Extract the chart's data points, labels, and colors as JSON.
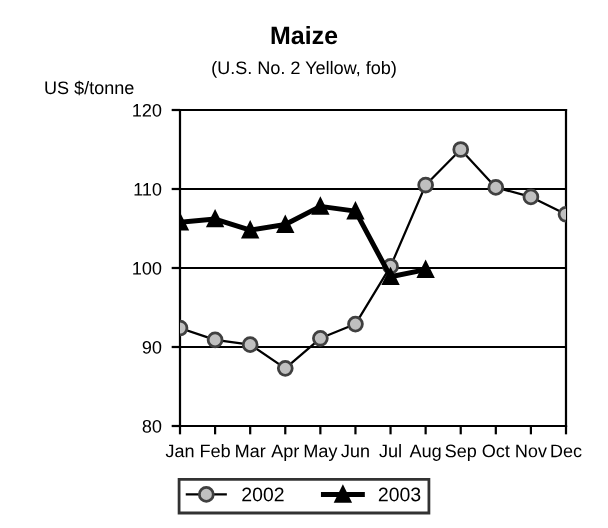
{
  "chart_data": {
    "type": "line",
    "title": "Maize",
    "subtitle": "(U.S. No. 2 Yellow, fob)",
    "ylabel": "US $/tonne",
    "categories": [
      "Jan",
      "Feb",
      "Mar",
      "Apr",
      "May",
      "Jun",
      "Jul",
      "Aug",
      "Sep",
      "Oct",
      "Nov",
      "Dec"
    ],
    "series": [
      {
        "name": "2002",
        "color": "#c0c0c0",
        "marker": "circle",
        "values": [
          92.4,
          90.9,
          90.3,
          87.3,
          91.1,
          92.9,
          100.2,
          110.5,
          115,
          110.2,
          109,
          106.8
        ]
      },
      {
        "name": "2003",
        "color": "#000000",
        "marker": "triangle",
        "values": [
          105.8,
          106.2,
          104.8,
          105.5,
          107.8,
          107.2,
          98.9,
          99.8,
          null,
          null,
          null,
          null
        ]
      }
    ],
    "ylim": [
      80,
      120
    ],
    "yticks": [
      80,
      90,
      100,
      110,
      120
    ],
    "grid": "y",
    "legend": "bottom"
  }
}
